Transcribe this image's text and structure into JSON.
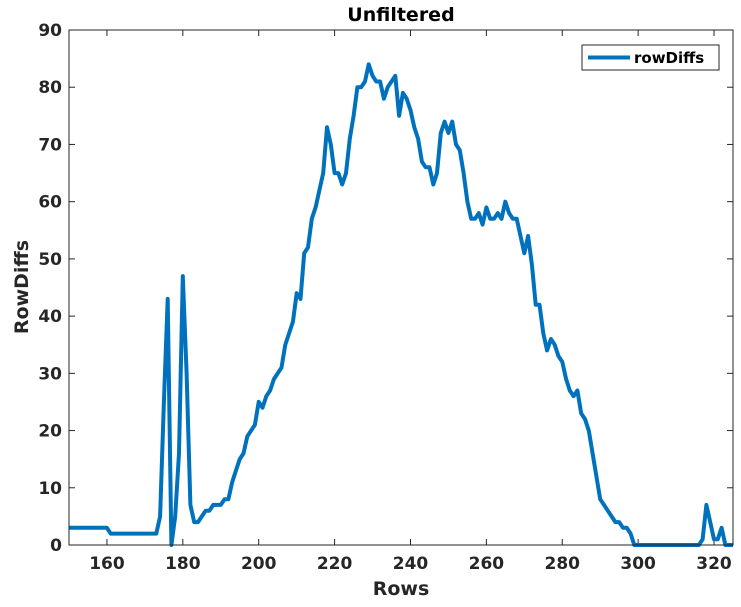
{
  "chart_data": {
    "type": "line",
    "title": "Unfiltered",
    "xlabel": "Rows",
    "ylabel": "RowDiffs",
    "xlim": [
      150,
      325
    ],
    "ylim": [
      0,
      90
    ],
    "xticks": [
      160,
      180,
      200,
      220,
      240,
      260,
      280,
      300,
      320
    ],
    "yticks": [
      0,
      10,
      20,
      30,
      40,
      50,
      60,
      70,
      80,
      90
    ],
    "grid": false,
    "legend_position": "top-right",
    "series": [
      {
        "name": "rowDiffs",
        "color": "#0072BD",
        "points": [
          [
            150,
            3
          ],
          [
            151,
            3
          ],
          [
            152,
            3
          ],
          [
            153,
            3
          ],
          [
            154,
            3
          ],
          [
            155,
            3
          ],
          [
            156,
            3
          ],
          [
            157,
            3
          ],
          [
            158,
            3
          ],
          [
            159,
            3
          ],
          [
            160,
            3
          ],
          [
            161,
            2
          ],
          [
            162,
            2
          ],
          [
            163,
            2
          ],
          [
            164,
            2
          ],
          [
            165,
            2
          ],
          [
            166,
            2
          ],
          [
            167,
            2
          ],
          [
            168,
            2
          ],
          [
            169,
            2
          ],
          [
            170,
            2
          ],
          [
            171,
            2
          ],
          [
            172,
            2
          ],
          [
            173,
            2
          ],
          [
            174,
            5
          ],
          [
            175,
            25
          ],
          [
            176,
            43
          ],
          [
            177,
            0
          ],
          [
            178,
            5
          ],
          [
            179,
            16
          ],
          [
            180,
            47
          ],
          [
            181,
            30
          ],
          [
            182,
            7
          ],
          [
            183,
            4
          ],
          [
            184,
            4
          ],
          [
            185,
            5
          ],
          [
            186,
            6
          ],
          [
            187,
            6
          ],
          [
            188,
            7
          ],
          [
            189,
            7
          ],
          [
            190,
            7
          ],
          [
            191,
            8
          ],
          [
            192,
            8
          ],
          [
            193,
            11
          ],
          [
            194,
            13
          ],
          [
            195,
            15
          ],
          [
            196,
            16
          ],
          [
            197,
            19
          ],
          [
            198,
            20
          ],
          [
            199,
            21
          ],
          [
            200,
            25
          ],
          [
            201,
            24
          ],
          [
            202,
            26
          ],
          [
            203,
            27
          ],
          [
            204,
            29
          ],
          [
            205,
            30
          ],
          [
            206,
            31
          ],
          [
            207,
            35
          ],
          [
            208,
            37
          ],
          [
            209,
            39
          ],
          [
            210,
            44
          ],
          [
            211,
            43
          ],
          [
            212,
            51
          ],
          [
            213,
            52
          ],
          [
            214,
            57
          ],
          [
            215,
            59
          ],
          [
            216,
            62
          ],
          [
            217,
            65
          ],
          [
            218,
            73
          ],
          [
            219,
            70
          ],
          [
            220,
            65
          ],
          [
            221,
            65
          ],
          [
            222,
            63
          ],
          [
            223,
            65
          ],
          [
            224,
            71
          ],
          [
            225,
            75
          ],
          [
            226,
            80
          ],
          [
            227,
            80
          ],
          [
            228,
            81
          ],
          [
            229,
            84
          ],
          [
            230,
            82
          ],
          [
            231,
            81
          ],
          [
            232,
            81
          ],
          [
            233,
            78
          ],
          [
            234,
            80
          ],
          [
            235,
            81
          ],
          [
            236,
            82
          ],
          [
            237,
            75
          ],
          [
            238,
            79
          ],
          [
            239,
            78
          ],
          [
            240,
            76
          ],
          [
            241,
            73
          ],
          [
            242,
            71
          ],
          [
            243,
            67
          ],
          [
            244,
            66
          ],
          [
            245,
            66
          ],
          [
            246,
            63
          ],
          [
            247,
            65
          ],
          [
            248,
            72
          ],
          [
            249,
            74
          ],
          [
            250,
            72
          ],
          [
            251,
            74
          ],
          [
            252,
            70
          ],
          [
            253,
            69
          ],
          [
            254,
            65
          ],
          [
            255,
            60
          ],
          [
            256,
            57
          ],
          [
            257,
            57
          ],
          [
            258,
            58
          ],
          [
            259,
            56
          ],
          [
            260,
            59
          ],
          [
            261,
            57
          ],
          [
            262,
            57
          ],
          [
            263,
            58
          ],
          [
            264,
            57
          ],
          [
            265,
            60
          ],
          [
            266,
            58
          ],
          [
            267,
            57
          ],
          [
            268,
            57
          ],
          [
            269,
            54
          ],
          [
            270,
            51
          ],
          [
            271,
            54
          ],
          [
            272,
            49
          ],
          [
            273,
            42
          ],
          [
            274,
            42
          ],
          [
            275,
            37
          ],
          [
            276,
            34
          ],
          [
            277,
            36
          ],
          [
            278,
            35
          ],
          [
            279,
            33
          ],
          [
            280,
            32
          ],
          [
            281,
            29
          ],
          [
            282,
            27
          ],
          [
            283,
            26
          ],
          [
            284,
            27
          ],
          [
            285,
            23
          ],
          [
            286,
            22
          ],
          [
            287,
            20
          ],
          [
            288,
            16
          ],
          [
            289,
            12
          ],
          [
            290,
            8
          ],
          [
            291,
            7
          ],
          [
            292,
            6
          ],
          [
            293,
            5
          ],
          [
            294,
            4
          ],
          [
            295,
            4
          ],
          [
            296,
            3
          ],
          [
            297,
            3
          ],
          [
            298,
            2
          ],
          [
            299,
            0
          ],
          [
            300,
            0
          ],
          [
            302,
            0
          ],
          [
            304,
            0
          ],
          [
            306,
            0
          ],
          [
            308,
            0
          ],
          [
            310,
            0
          ],
          [
            312,
            0
          ],
          [
            314,
            0
          ],
          [
            316,
            0
          ],
          [
            317,
            1
          ],
          [
            318,
            7
          ],
          [
            319,
            4
          ],
          [
            320,
            1
          ],
          [
            321,
            1
          ],
          [
            322,
            3
          ],
          [
            323,
            0
          ],
          [
            324,
            0
          ],
          [
            325,
            0
          ]
        ]
      }
    ]
  }
}
